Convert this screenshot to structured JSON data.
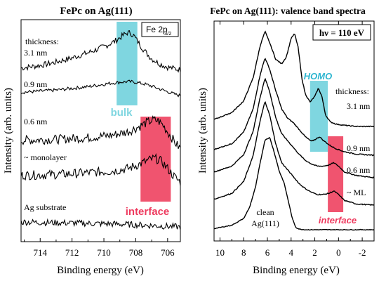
{
  "chart_data": [
    {
      "type": "line",
      "title": "FePc on Ag(111)",
      "xlabel": "Binding energy (eV)",
      "ylabel": "Intensity (arb. units)",
      "xlim": [
        715.2,
        705.2
      ],
      "x_ticks": [
        "714",
        "712",
        "710",
        "708",
        "706"
      ],
      "x_tick_values": [
        714,
        712,
        710,
        708,
        706
      ],
      "legend_box": {
        "main": "Fe 2p",
        "sub": "3/2"
      },
      "thickness_label": "thickness:",
      "annotations": {
        "bulk": "bulk",
        "interface": "interface"
      },
      "bulk_range": [
        709.2,
        707.9
      ],
      "interface_range": [
        707.7,
        705.8
      ],
      "series": [
        {
          "name": "3.1 nm",
          "x": [
            715.2,
            714,
            713,
            712,
            711,
            710.3,
            709.8,
            709.3,
            709,
            708.7,
            708.5,
            708.3,
            708.1,
            707.9,
            707.6,
            707.3,
            707,
            706.5,
            706,
            705.5,
            705.2
          ],
          "y": [
            0.6,
            0.9,
            1.3,
            1.8,
            2.4,
            2.9,
            3.3,
            3.8,
            4.2,
            4.6,
            4.8,
            4.7,
            4.4,
            3.8,
            3.0,
            2.3,
            1.7,
            1.1,
            0.7,
            0.5,
            0.4
          ],
          "noise": 0.35
        },
        {
          "name": "0.9 nm",
          "x": [
            715.2,
            714,
            713,
            712,
            711,
            710.3,
            709.6,
            709,
            708.5,
            708,
            707.5,
            707,
            706.6,
            706.2,
            705.8,
            705.5,
            705.2
          ],
          "y": [
            0.2,
            0.4,
            0.6,
            0.9,
            1.2,
            1.5,
            1.8,
            2.0,
            2.1,
            2.0,
            1.7,
            1.3,
            0.9,
            0.5,
            0.1,
            -0.2,
            -0.4
          ],
          "noise": 0.3
        },
        {
          "name": "0.6 nm",
          "x": [
            715.2,
            713,
            711,
            709.5,
            708.5,
            707.8,
            707.3,
            706.9,
            706.6,
            706.3,
            706,
            705.7,
            705.4,
            705.2
          ],
          "y": [
            0.2,
            0.3,
            0.5,
            0.8,
            1.2,
            1.8,
            2.3,
            2.6,
            2.5,
            2.0,
            1.2,
            0.4,
            -0.4,
            -0.8
          ],
          "noise": 0.55
        },
        {
          "name": "~ monolayer",
          "x": [
            715.2,
            713,
            711,
            709.5,
            708.5,
            707.8,
            707.3,
            706.9,
            706.6,
            706.3,
            706,
            705.7,
            705.4,
            705.2
          ],
          "y": [
            0.2,
            0.3,
            0.5,
            0.7,
            1.0,
            1.5,
            1.9,
            2.2,
            2.1,
            1.7,
            1.0,
            0.3,
            -0.3,
            -0.6
          ],
          "noise": 0.55
        },
        {
          "name": "Ag substrate",
          "x": [
            715.2,
            713,
            711,
            709,
            707,
            705.2
          ],
          "y": [
            0.4,
            0.3,
            0.2,
            0.1,
            -0.1,
            -0.3
          ],
          "noise": 0.45
        }
      ]
    },
    {
      "type": "line",
      "title": "FePc on Ag(111): valence band spectra",
      "xlabel": "Binding energy (eV)",
      "ylabel": "Intensity (arb. units)",
      "xlim": [
        10.5,
        -3
      ],
      "x_ticks": [
        "10",
        "8",
        "6",
        "4",
        "2",
        "0",
        "-2"
      ],
      "x_tick_values": [
        10,
        8,
        6,
        4,
        2,
        0,
        -2
      ],
      "photon_energy": "hν = 110 eV",
      "thickness_label": "thickness:",
      "annotations": {
        "homo": "HOMO",
        "interface": "interface"
      },
      "homo_range": [
        2.4,
        0.9
      ],
      "interface_range": [
        0.9,
        -0.4
      ],
      "series": [
        {
          "name": "3.1 nm",
          "x": [
            10.5,
            9,
            8,
            7.2,
            6.6,
            6.2,
            5.8,
            5.3,
            4.8,
            4.4,
            4.0,
            3.7,
            3.4,
            3.1,
            2.8,
            2.4,
            2.0,
            1.7,
            1.4,
            1.1,
            0.7,
            0.2,
            -0.5,
            -1.5,
            -3
          ],
          "y": [
            0.6,
            1.2,
            2.2,
            4.2,
            7.0,
            8.2,
            7.2,
            5.8,
            5.4,
            6.0,
            7.6,
            8.0,
            6.8,
            4.2,
            2.8,
            2.1,
            2.6,
            3.3,
            2.6,
            1.0,
            0.4,
            0.2,
            0.1,
            0.0,
            0.0
          ],
          "noise": 0.04
        },
        {
          "name": "0.9 nm",
          "x": [
            10.5,
            9,
            8,
            7.2,
            6.6,
            6.2,
            5.8,
            5.3,
            4.8,
            4.3,
            3.8,
            3.3,
            2.8,
            2.3,
            1.9,
            1.6,
            1.3,
            0.8,
            0.3,
            -0.5,
            -1.5,
            -3
          ],
          "y": [
            0.5,
            1.0,
            2.0,
            4.0,
            7.0,
            8.4,
            7.4,
            5.6,
            4.0,
            3.2,
            2.8,
            2.2,
            1.6,
            1.2,
            1.4,
            1.6,
            1.3,
            0.9,
            0.6,
            0.3,
            0.1,
            0.0
          ],
          "noise": 0.04
        },
        {
          "name": "0.6 nm",
          "x": [
            10.5,
            9,
            8,
            7.2,
            6.6,
            6.2,
            5.8,
            5.3,
            4.8,
            4.3,
            3.8,
            3.3,
            2.8,
            2.3,
            1.8,
            1.3,
            0.8,
            0.4,
            0.0,
            -0.5,
            -1.5,
            -3
          ],
          "y": [
            0.5,
            1.0,
            2.0,
            4.0,
            7.0,
            8.6,
            7.4,
            5.2,
            3.8,
            3.2,
            2.6,
            2.0,
            1.5,
            1.2,
            1.0,
            1.0,
            1.1,
            1.3,
            1.0,
            0.5,
            0.2,
            0.0
          ],
          "noise": 0.04
        },
        {
          "name": "~ ML",
          "x": [
            10.5,
            9,
            8,
            7.2,
            6.6,
            6.2,
            5.8,
            5.3,
            4.8,
            4.3,
            3.8,
            3.3,
            2.8,
            2.3,
            1.8,
            1.3,
            0.8,
            0.4,
            0.0,
            -0.5,
            -1.5,
            -3
          ],
          "y": [
            0.5,
            1.0,
            2.0,
            4.2,
            7.2,
            8.8,
            7.6,
            5.2,
            3.6,
            3.0,
            2.4,
            1.8,
            1.4,
            1.1,
            0.9,
            0.9,
            1.0,
            1.2,
            0.9,
            0.4,
            0.1,
            0.0
          ],
          "noise": 0.04
        },
        {
          "name": "clean Ag(111)",
          "x": [
            10.5,
            9,
            8,
            7.5,
            7.0,
            6.6,
            6.2,
            5.8,
            5.4,
            5.0,
            4.6,
            4.2,
            3.9,
            3.6,
            3.3,
            2.8,
            2.0,
            1.0,
            0.0,
            -1.5,
            -3
          ],
          "y": [
            0.1,
            0.4,
            1.0,
            2.0,
            3.8,
            6.0,
            8.0,
            8.2,
            6.8,
            5.2,
            4.2,
            2.4,
            1.0,
            0.2,
            0.05,
            0.0,
            0.0,
            0.0,
            0.0,
            0.0,
            0.0
          ],
          "noise": 0.03
        }
      ],
      "labels": {
        "clean_line1": "clean",
        "clean_line2": "Ag(111)"
      }
    }
  ],
  "colors": {
    "bulk": "#7fd6e0",
    "interface": "#f0546f",
    "homo_text": "#2fb6d0",
    "interface_text": "#ee3a5e",
    "line": "#000000"
  }
}
